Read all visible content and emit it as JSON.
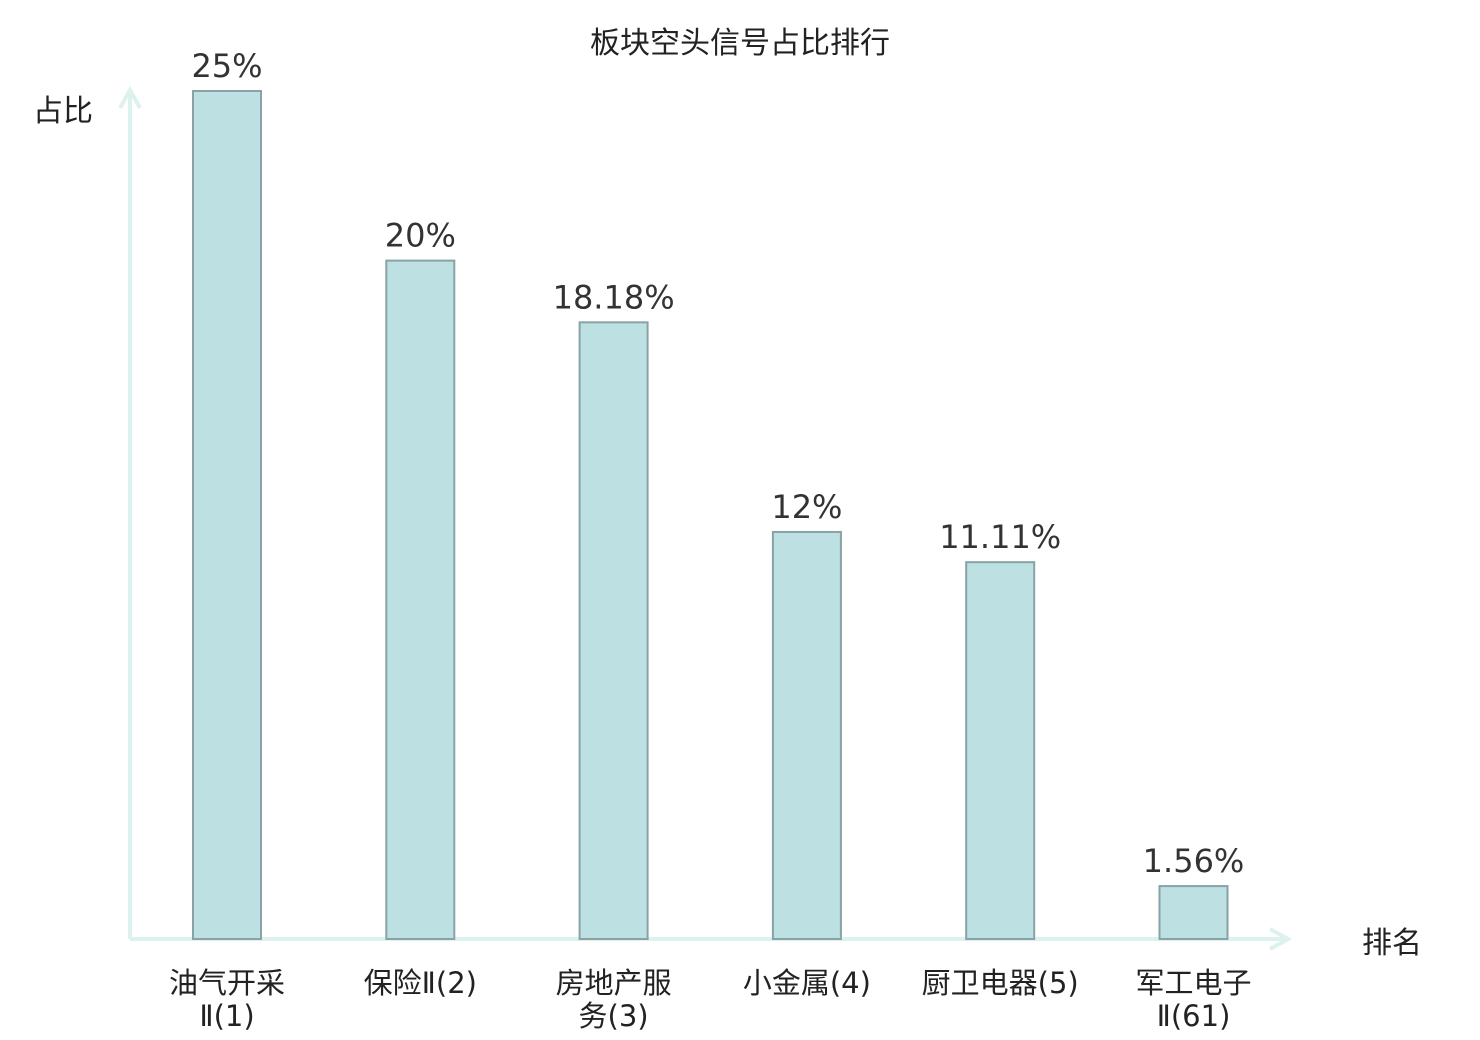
{
  "chart_data": {
    "type": "bar",
    "title": "板块空头信号占比排行",
    "ylabel": "占比",
    "xlabel": "排名",
    "ylim": [
      0,
      25
    ],
    "grid": false,
    "categories": [
      [
        "油气开采",
        "Ⅱ(1)"
      ],
      [
        "保险Ⅱ(2)"
      ],
      [
        "房地产服",
        "务(3)"
      ],
      [
        "小金属(4)"
      ],
      [
        "厨卫电器(5)"
      ],
      [
        "军工电子",
        "Ⅱ(61)"
      ]
    ],
    "values": [
      25,
      20,
      18.18,
      12,
      11.11,
      1.56
    ],
    "value_labels": [
      "25%",
      "20%",
      "18.18%",
      "12%",
      "11.11%",
      "1.56%"
    ],
    "highlight_index": 5,
    "colors": {
      "bar_fill": "#bde0e2",
      "bar_stroke": "#88a2a6",
      "axis": "#ddf1ef",
      "highlight_text": "#e8262a",
      "text": "#222222"
    }
  }
}
